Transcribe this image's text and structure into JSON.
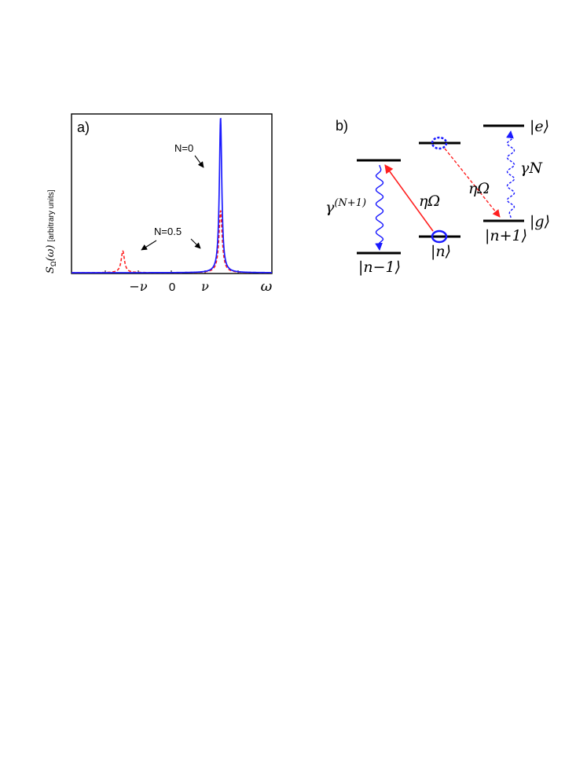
{
  "panel_a": {
    "label": "a)",
    "ylabel": "S_Ω(ω) [arbitrary units]",
    "ylabel_main": "S",
    "ylabel_sub": "Ω",
    "ylabel_arg": "(ω)",
    "ylabel_units": "[arbitrary units]",
    "xlabel": "ω",
    "xticks": [
      "−ν",
      "0",
      "ν"
    ],
    "annotations": [
      "N=0",
      "N=0.5"
    ]
  },
  "chart_data": {
    "type": "line",
    "title": "",
    "xlabel": "ω",
    "ylabel": "S_Ω(ω) [arbitrary units]",
    "x_ticks": [
      {
        "label": "−ν",
        "x": -1
      },
      {
        "label": "0",
        "x": 0
      },
      {
        "label": "ν",
        "x": 1
      }
    ],
    "xlim": [
      -2.05,
      2.05
    ],
    "ylim": [
      0,
      1.0
    ],
    "series": [
      {
        "annotation": "N=0",
        "color": "#1a1aff",
        "style": "solid",
        "peaks": [
          {
            "center": 1.0,
            "height": 1.0,
            "width": 0.03
          }
        ]
      },
      {
        "annotation": "N=0.5",
        "color": "#ff2020",
        "style": "dashed",
        "peaks": [
          {
            "center": -1.0,
            "height": 0.14,
            "width": 0.04
          },
          {
            "center": 1.0,
            "height": 0.4,
            "width": 0.04
          }
        ]
      }
    ],
    "grid": false
  },
  "panel_b": {
    "label": "b)",
    "state_n_minus_1": "|n−1⟩",
    "state_n": "|n⟩",
    "state_n_plus_1": "|n+1⟩",
    "state_g": "|g⟩",
    "state_e": "|e⟩",
    "coupling_1": "ηΩ",
    "coupling_2": "ηΩ",
    "decay_left_base": "γ",
    "decay_left_exp": "(N+1)",
    "decay_right": "γN",
    "colors": {
      "blue": "#1a1aff",
      "red": "#ff2020"
    }
  }
}
